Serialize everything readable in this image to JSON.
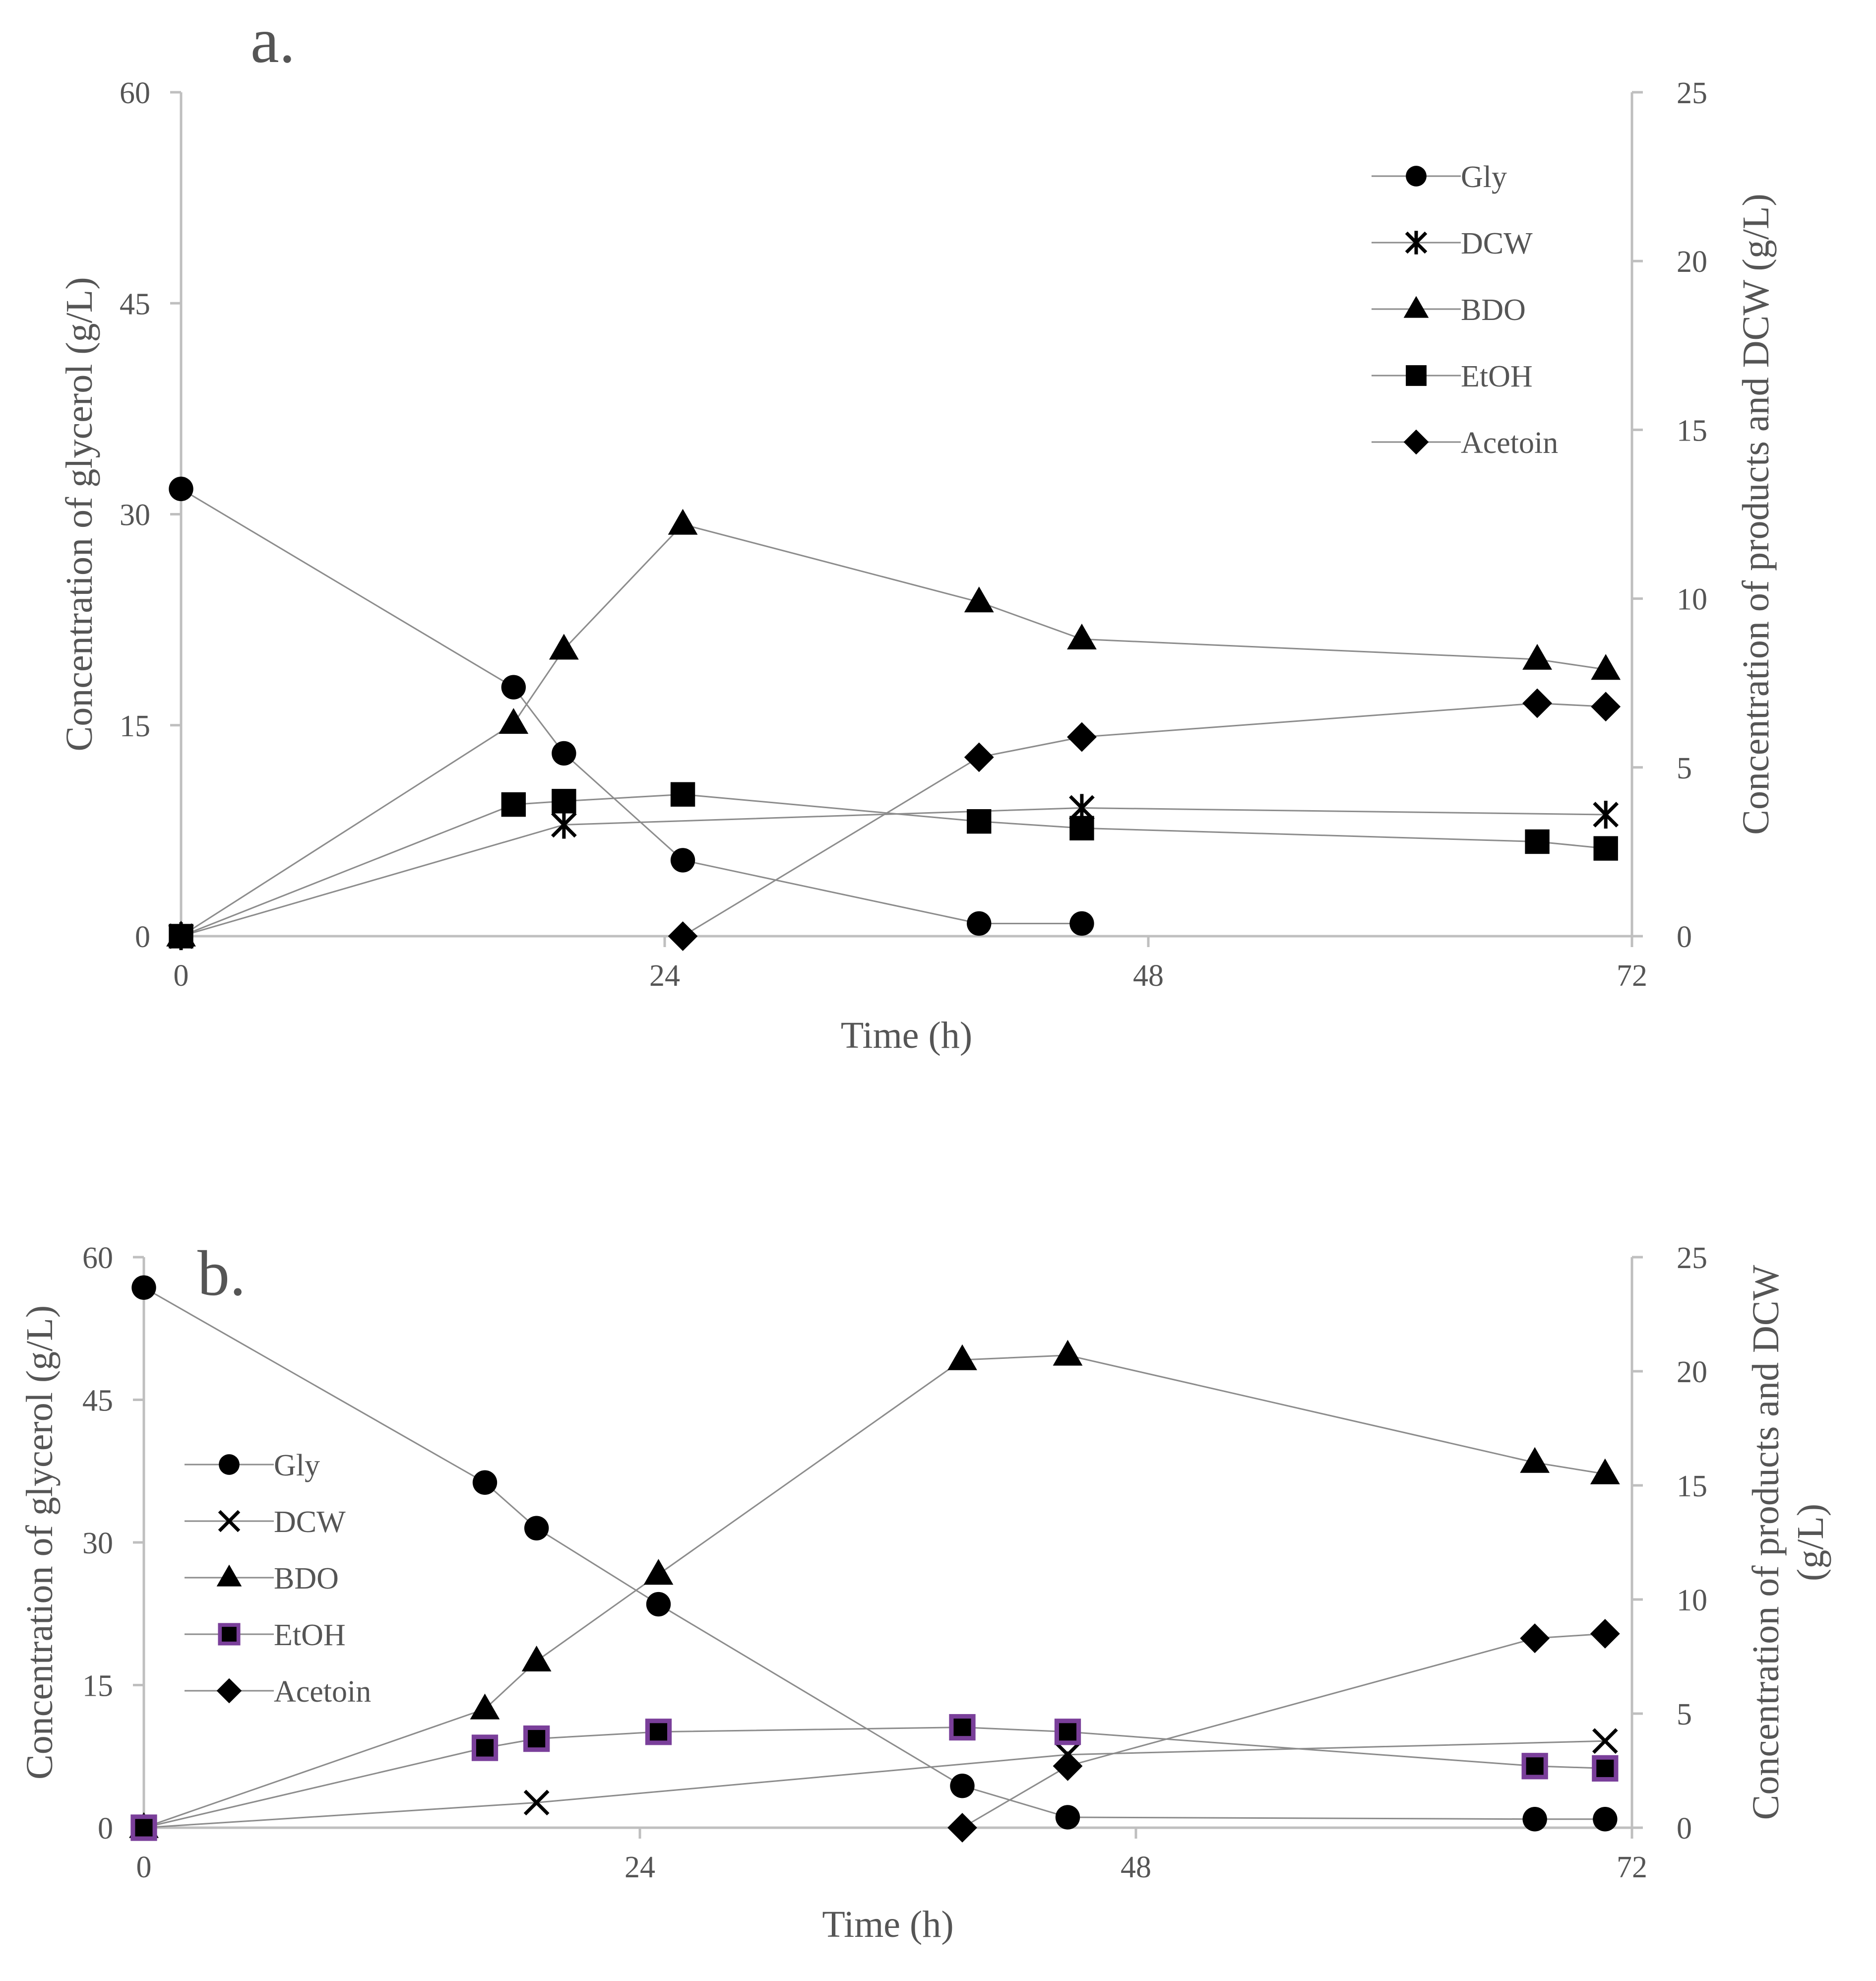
{
  "chart_data": [
    {
      "type": "line",
      "panel_label": "a.",
      "xlabel": "Time (h)",
      "ylabel": "Concentration of glycerol  (g/L)",
      "y2label": "Concentration of products and DCW  (g/L)",
      "xlim": [
        0,
        72
      ],
      "ylim": [
        0,
        60
      ],
      "y2lim": [
        0,
        25
      ],
      "x_ticks": [
        "0",
        "24",
        "48",
        "72"
      ],
      "y_ticks": [
        "0",
        "15",
        "30",
        "45",
        "60"
      ],
      "y2_ticks": [
        "0",
        "5",
        "10",
        "15",
        "20",
        "25"
      ],
      "legend_position": "top-right",
      "series": [
        {
          "name": "Gly",
          "marker": "circle",
          "axis": "left",
          "x": [
            0,
            16.5,
            19,
            24.9,
            39.6,
            44.7
          ],
          "values": [
            31.8,
            17.7,
            13.0,
            5.4,
            0.9,
            0.9
          ]
        },
        {
          "name": "DCW",
          "marker": "asterisk",
          "axis": "right",
          "x": [
            0,
            19,
            44.7,
            70.7
          ],
          "values": [
            0,
            3.3,
            3.8,
            3.6
          ]
        },
        {
          "name": "BDO",
          "marker": "triangle",
          "axis": "right",
          "x": [
            0,
            16.5,
            19,
            24.9,
            39.6,
            44.7,
            67.3,
            70.7
          ],
          "values": [
            0,
            6.3,
            8.5,
            12.2,
            9.9,
            8.8,
            8.2,
            7.9
          ]
        },
        {
          "name": "EtOH",
          "marker": "square",
          "axis": "right",
          "x": [
            0,
            16.5,
            19,
            24.9,
            39.6,
            44.7,
            67.3,
            70.7
          ],
          "values": [
            0,
            3.9,
            4.0,
            4.2,
            3.4,
            3.2,
            2.8,
            2.6
          ]
        },
        {
          "name": "Acetoin",
          "marker": "diamond",
          "axis": "right",
          "x": [
            24.9,
            39.6,
            44.7,
            67.3,
            70.7
          ],
          "values": [
            0,
            5.3,
            5.9,
            6.9,
            6.8
          ]
        }
      ]
    },
    {
      "type": "line",
      "panel_label": "b.",
      "xlabel": "Time (h)",
      "ylabel": "Concentration of glycerol  (g/L)",
      "y2label_line1": "Concentration of products and DCW",
      "y2label_line2": "(g/L)",
      "xlim": [
        0,
        72
      ],
      "ylim": [
        0,
        60
      ],
      "y2lim": [
        0,
        25
      ],
      "x_ticks": [
        "0",
        "24",
        "48",
        "72"
      ],
      "y_ticks": [
        "0",
        "15",
        "30",
        "45",
        "60"
      ],
      "y2_ticks": [
        "0",
        "5",
        "10",
        "15",
        "20",
        "25"
      ],
      "legend_position": "middle-left",
      "series": [
        {
          "name": "Gly",
          "marker": "circle",
          "axis": "left",
          "x": [
            0,
            16.5,
            19,
            24.9,
            39.6,
            44.7,
            67.3,
            70.7
          ],
          "values": [
            56.8,
            36.3,
            31.5,
            23.5,
            4.4,
            1.1,
            0.9,
            0.9
          ]
        },
        {
          "name": "DCW",
          "marker": "x",
          "axis": "right",
          "x": [
            0,
            19,
            44.7,
            70.7
          ],
          "values": [
            0,
            1.1,
            3.2,
            3.8
          ]
        },
        {
          "name": "BDO",
          "marker": "triangle",
          "axis": "right",
          "x": [
            0,
            16.5,
            19,
            24.9,
            39.6,
            44.7,
            67.3,
            70.7
          ],
          "values": [
            0,
            5.2,
            7.3,
            11.1,
            20.5,
            20.7,
            16.0,
            15.5
          ]
        },
        {
          "name": "EtOH",
          "marker": "square-purple",
          "axis": "right",
          "x": [
            0,
            16.5,
            19,
            24.9,
            39.6,
            44.7,
            67.3,
            70.7
          ],
          "values": [
            0,
            3.5,
            3.9,
            4.2,
            4.4,
            4.2,
            2.7,
            2.6
          ]
        },
        {
          "name": "Acetoin",
          "marker": "diamond",
          "axis": "right",
          "x": [
            39.6,
            44.7,
            67.3,
            70.7
          ],
          "values": [
            0,
            2.7,
            8.3,
            8.5
          ]
        }
      ]
    }
  ]
}
